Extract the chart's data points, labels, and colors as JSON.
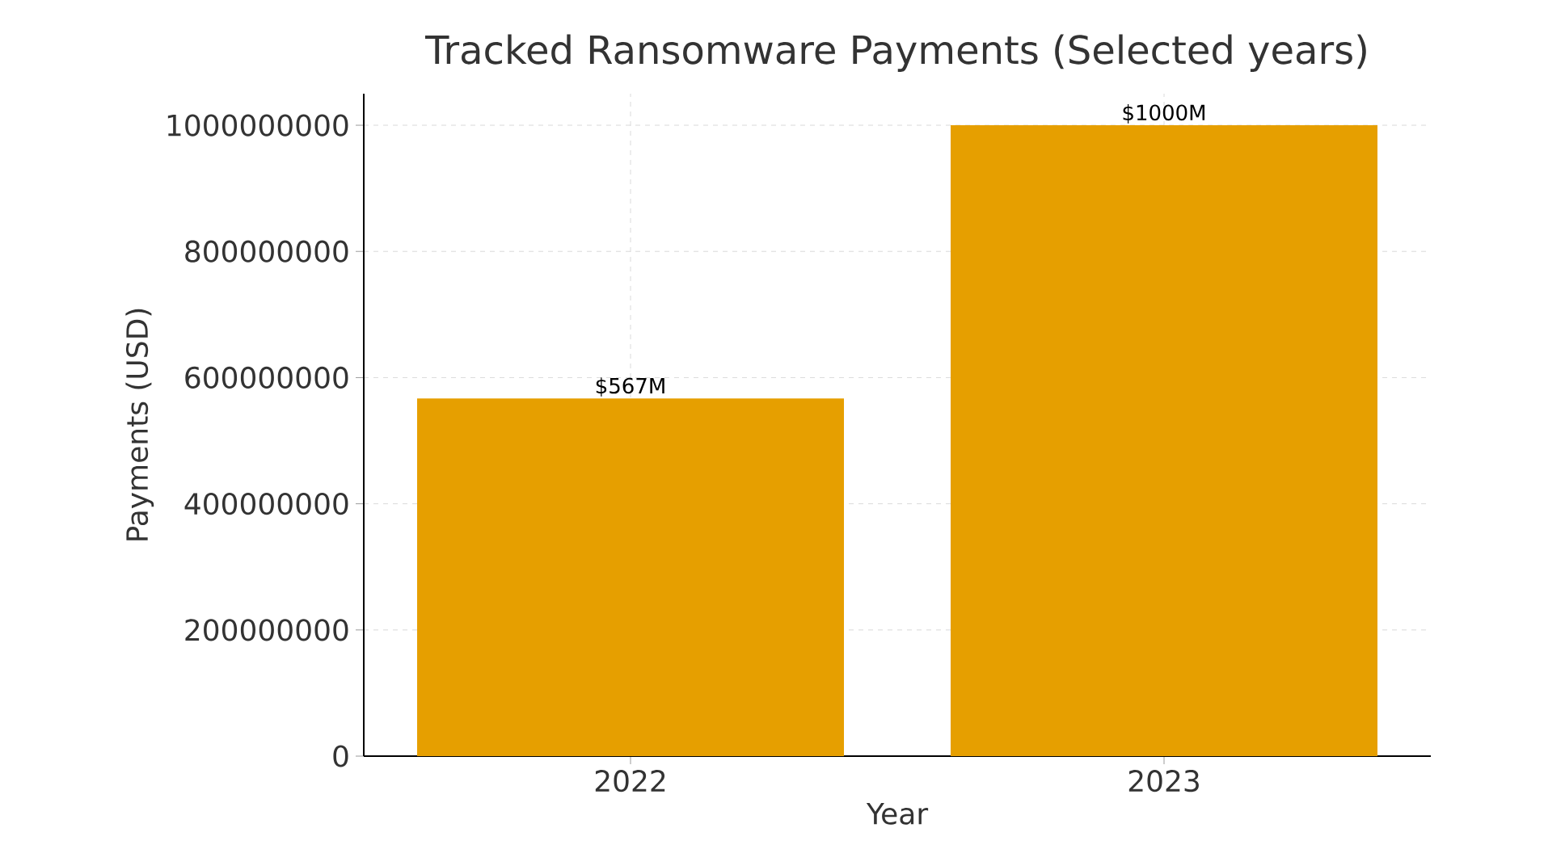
{
  "chart_data": {
    "type": "bar",
    "title": "Tracked Ransomware Payments (Selected years)",
    "xlabel": "Year",
    "ylabel": "Payments (USD)",
    "categories": [
      "2022",
      "2023"
    ],
    "values": [
      567000000,
      1000000000
    ],
    "value_labels": [
      "$567M",
      "$1000M"
    ],
    "color": "#e69f00",
    "ylim": [
      0,
      1050000000
    ],
    "yticks": [
      0,
      200000000,
      400000000,
      600000000,
      800000000,
      1000000000
    ],
    "grid": true
  }
}
